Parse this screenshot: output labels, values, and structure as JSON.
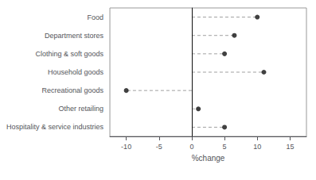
{
  "chart_data": {
    "type": "lollipop",
    "orientation": "horizontal",
    "categories": [
      "Hospitality & service industries",
      "Other retailing",
      "Recreational goods",
      "Household goods",
      "Clothing & soft goods",
      "Department stores",
      "Food"
    ],
    "values": [
      5.0,
      1.0,
      -10.0,
      11.0,
      5.0,
      6.5,
      10.0
    ],
    "xlabel": "%change",
    "xlim": [
      -12.5,
      17.5
    ],
    "xticks": [
      -10,
      -5,
      0,
      5,
      10,
      15
    ],
    "color": "#111111",
    "marker": "circle",
    "line_style": "dashed",
    "grid": false
  }
}
